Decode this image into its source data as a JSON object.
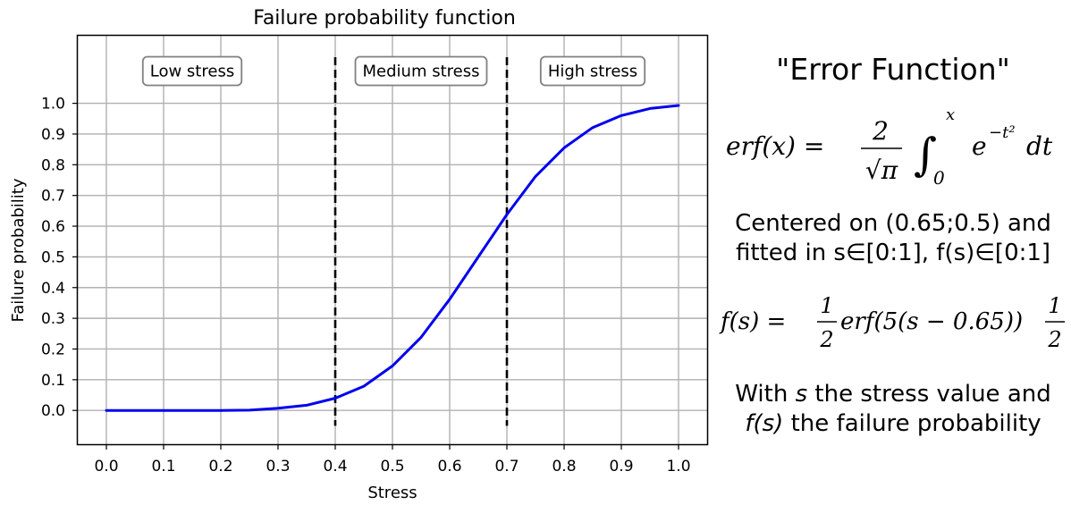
{
  "chart_data": {
    "type": "line",
    "title": "Failure probability function",
    "xlabel": "Stress",
    "ylabel": "Failure probability",
    "xlim": [
      -0.05,
      1.05
    ],
    "ylim": [
      -0.11,
      1.22
    ],
    "xticks": [
      "0.0",
      "0.1",
      "0.2",
      "0.3",
      "0.4",
      "0.5",
      "0.6",
      "0.7",
      "0.8",
      "0.9",
      "1.0"
    ],
    "yticks": [
      "0.0",
      "0.1",
      "0.2",
      "0.3",
      "0.4",
      "0.5",
      "0.6",
      "0.7",
      "0.8",
      "0.9",
      "1.0"
    ],
    "grid": true,
    "series": [
      {
        "color": "#0000ee",
        "x": [
          0.0,
          0.05,
          0.1,
          0.15,
          0.2,
          0.25,
          0.3,
          0.35,
          0.4,
          0.45,
          0.5,
          0.55,
          0.6,
          0.65,
          0.7,
          0.75,
          0.8,
          0.85,
          0.9,
          0.95,
          1.0
        ],
        "y": [
          0.0,
          0.0,
          0.0,
          0.0,
          0.0,
          0.001,
          0.007,
          0.017,
          0.04,
          0.079,
          0.145,
          0.238,
          0.362,
          0.5,
          0.638,
          0.762,
          0.855,
          0.921,
          0.96,
          0.983,
          0.993
        ]
      }
    ],
    "vlines": [
      {
        "x": 0.4,
        "style": "dashed",
        "color": "#000000"
      },
      {
        "x": 0.7,
        "style": "dashed",
        "color": "#000000"
      }
    ],
    "annotations": [
      {
        "text": "Low stress",
        "x": 0.15
      },
      {
        "text": "Medium stress",
        "x": 0.55
      },
      {
        "text": "High stress",
        "x": 0.85
      }
    ]
  },
  "side_panel": {
    "title": "\"Error Function\"",
    "erf_formula": {
      "lhs": "erf(x) =",
      "numerator": "2",
      "denominator": "√π",
      "integral": "∫",
      "upper": "x",
      "lower": "0",
      "integrand": "e",
      "exponent": "−t²",
      "differential": "dt"
    },
    "centered_text": "Centered on (0.65;0.5) and fitted in s∈[0:1], f(s)∈[0:1]",
    "fs_formula": {
      "lhs": "f(s) =",
      "frac1_num": "1",
      "frac1_den": "2",
      "middle": "erf(5(s − 0.65))",
      "frac2_num": "1",
      "frac2_den": "2"
    },
    "with_text": {
      "part1": "With ",
      "s": "s",
      "part2": " the stress value and",
      "fs": "f(s)",
      "part3": " the failure probability"
    }
  }
}
